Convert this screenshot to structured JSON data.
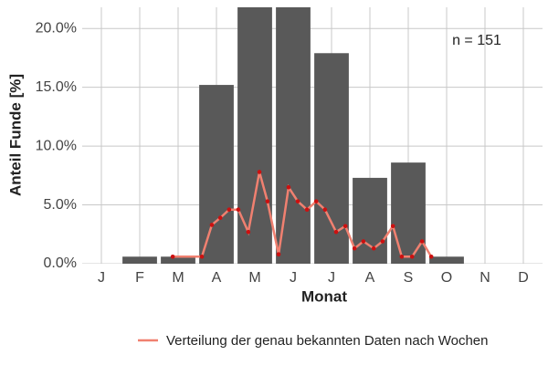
{
  "chart_data": {
    "type": "bar",
    "categories": [
      "J",
      "F",
      "M",
      "A",
      "M",
      "J",
      "J",
      "A",
      "S",
      "O",
      "N",
      "D"
    ],
    "values": [
      0,
      0.6,
      0.6,
      15.2,
      22,
      22,
      17.9,
      7.3,
      8.6,
      0.6,
      0,
      0
    ],
    "color": "#595959",
    "xlabel": "Monat",
    "ylabel": "Anteil Funde [%]",
    "annotation": "n = 151",
    "ylim": [
      0,
      21.8
    ],
    "yticks": [
      {
        "value": 0,
        "label": "0.0%"
      },
      {
        "value": 5,
        "label": "5.0%"
      },
      {
        "value": 10,
        "label": "10.0%"
      },
      {
        "value": 15,
        "label": "15.0%"
      },
      {
        "value": 20,
        "label": "20.0%"
      }
    ],
    "xlim": [
      0.5,
      12.5
    ],
    "grid": true,
    "legend": "bottom",
    "line": {
      "name": "Verteilung der genau bekannten Daten nach Wochen",
      "color": "#f08070",
      "point_color": "#cc1010",
      "x": [
        2.86,
        3.62,
        3.88,
        4.1,
        4.33,
        4.57,
        4.83,
        5.12,
        5.33,
        5.62,
        5.88,
        6.12,
        6.36,
        6.6,
        6.83,
        7.12,
        7.36,
        7.6,
        7.83,
        8.1,
        8.33,
        8.6,
        8.83,
        9.1,
        9.36,
        9.6
      ],
      "values": [
        0.6,
        0.6,
        3.3,
        3.9,
        4.6,
        4.6,
        2.7,
        7.8,
        5.3,
        0.8,
        6.5,
        5.3,
        4.6,
        5.3,
        4.6,
        2.7,
        3.2,
        1.3,
        1.9,
        1.3,
        1.9,
        3.2,
        0.6,
        0.6,
        1.9,
        0.6
      ]
    }
  }
}
